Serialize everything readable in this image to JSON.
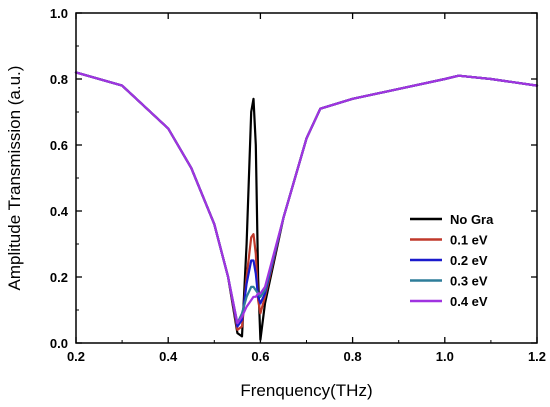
{
  "chart_data": {
    "type": "line",
    "title": "",
    "xlabel": "Frenquency(THz)",
    "ylabel": "Amplitude Transmission (a.u.)",
    "xlim": [
      0.2,
      1.2
    ],
    "ylim": [
      0.0,
      1.0
    ],
    "xticks": [
      "0.2",
      "0.4",
      "0.6",
      "0.8",
      "1.0",
      "1.2"
    ],
    "yticks": [
      "0.0",
      "0.2",
      "0.4",
      "0.6",
      "0.8",
      "1.0"
    ],
    "grid": false,
    "legend_position": "lower-right",
    "series": [
      {
        "name": "No Gra",
        "color": "#000000",
        "x": [
          0.2,
          0.3,
          0.4,
          0.45,
          0.5,
          0.53,
          0.55,
          0.56,
          0.57,
          0.58,
          0.585,
          0.59,
          0.595,
          0.6,
          0.61,
          0.65,
          0.7,
          0.73,
          0.8,
          0.9,
          1.0,
          1.03,
          1.1,
          1.2
        ],
        "y": [
          0.82,
          0.78,
          0.65,
          0.53,
          0.36,
          0.2,
          0.03,
          0.02,
          0.3,
          0.7,
          0.74,
          0.6,
          0.2,
          0.01,
          0.12,
          0.38,
          0.62,
          0.71,
          0.74,
          0.77,
          0.8,
          0.81,
          0.8,
          0.78
        ]
      },
      {
        "name": "0.1 eV",
        "color": "#c0392b",
        "x": [
          0.2,
          0.3,
          0.4,
          0.45,
          0.5,
          0.53,
          0.55,
          0.56,
          0.57,
          0.58,
          0.585,
          0.59,
          0.595,
          0.6,
          0.61,
          0.65,
          0.7,
          0.73,
          0.8,
          0.9,
          1.0,
          1.03,
          1.1,
          1.2
        ],
        "y": [
          0.82,
          0.78,
          0.65,
          0.53,
          0.36,
          0.2,
          0.04,
          0.05,
          0.2,
          0.32,
          0.33,
          0.27,
          0.13,
          0.09,
          0.14,
          0.38,
          0.62,
          0.71,
          0.74,
          0.77,
          0.8,
          0.81,
          0.8,
          0.78
        ]
      },
      {
        "name": "0.2 eV",
        "color": "#1a1acd",
        "x": [
          0.2,
          0.3,
          0.4,
          0.45,
          0.5,
          0.53,
          0.55,
          0.56,
          0.57,
          0.58,
          0.585,
          0.59,
          0.595,
          0.6,
          0.61,
          0.65,
          0.7,
          0.73,
          0.8,
          0.9,
          1.0,
          1.03,
          1.1,
          1.2
        ],
        "y": [
          0.82,
          0.78,
          0.65,
          0.53,
          0.36,
          0.2,
          0.05,
          0.07,
          0.18,
          0.25,
          0.25,
          0.21,
          0.14,
          0.12,
          0.15,
          0.38,
          0.62,
          0.71,
          0.74,
          0.77,
          0.8,
          0.81,
          0.8,
          0.78
        ]
      },
      {
        "name": "0.3 eV",
        "color": "#2e7d9a",
        "x": [
          0.2,
          0.3,
          0.4,
          0.45,
          0.5,
          0.53,
          0.55,
          0.56,
          0.57,
          0.58,
          0.585,
          0.59,
          0.595,
          0.6,
          0.61,
          0.65,
          0.7,
          0.73,
          0.8,
          0.9,
          1.0,
          1.03,
          1.1,
          1.2
        ],
        "y": [
          0.82,
          0.78,
          0.65,
          0.53,
          0.36,
          0.2,
          0.06,
          0.09,
          0.14,
          0.17,
          0.17,
          0.16,
          0.15,
          0.14,
          0.16,
          0.38,
          0.62,
          0.71,
          0.74,
          0.77,
          0.8,
          0.81,
          0.8,
          0.78
        ]
      },
      {
        "name": "0.4 eV",
        "color": "#a033e0",
        "x": [
          0.2,
          0.3,
          0.4,
          0.45,
          0.5,
          0.53,
          0.55,
          0.56,
          0.57,
          0.58,
          0.585,
          0.59,
          0.595,
          0.6,
          0.61,
          0.65,
          0.7,
          0.73,
          0.8,
          0.9,
          1.0,
          1.03,
          1.1,
          1.2
        ],
        "y": [
          0.82,
          0.78,
          0.65,
          0.53,
          0.36,
          0.2,
          0.06,
          0.08,
          0.11,
          0.13,
          0.14,
          0.14,
          0.15,
          0.15,
          0.17,
          0.38,
          0.62,
          0.71,
          0.74,
          0.77,
          0.8,
          0.81,
          0.8,
          0.78
        ]
      }
    ]
  }
}
